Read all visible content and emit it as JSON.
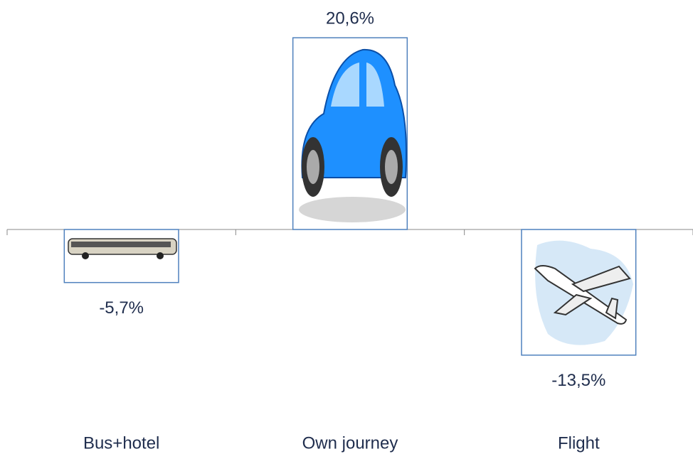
{
  "chart_data": {
    "type": "bar",
    "categories": [
      "Bus+hotel",
      "Own journey",
      "Flight"
    ],
    "values": [
      -5.7,
      20.6,
      -13.5
    ],
    "value_labels": [
      "-5,7%",
      "20,6%",
      "-13,5%"
    ],
    "color": "#4f81bd",
    "ylim": [
      -15,
      24
    ]
  }
}
